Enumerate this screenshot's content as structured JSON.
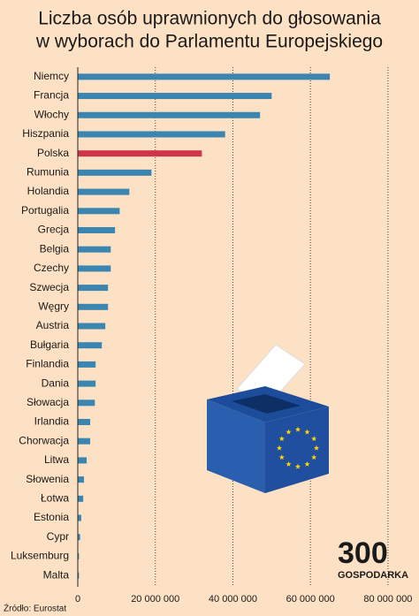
{
  "chart_data": {
    "type": "barh",
    "title": [
      "Liczba osób uprawnionych do głosowania",
      "w wyborach do Parlamentu Europejskiego"
    ],
    "categories": [
      "Niemcy",
      "Francja",
      "Włochy",
      "Hiszpania",
      "Polska",
      "Rumunia",
      "Holandia",
      "Portugalia",
      "Grecja",
      "Belgia",
      "Czechy",
      "Szwecja",
      "Węgry",
      "Austria",
      "Bułgaria",
      "Finlandia",
      "Dania",
      "Słowacja",
      "Irlandia",
      "Chorwacja",
      "Litwa",
      "Słowenia",
      "Łotwa",
      "Estonia",
      "Cypr",
      "Luksemburg",
      "Malta"
    ],
    "values": [
      65000000,
      50000000,
      47000000,
      38000000,
      32000000,
      19000000,
      13300000,
      10800000,
      9600000,
      8500000,
      8500000,
      7800000,
      7800000,
      7100000,
      6200000,
      4600000,
      4600000,
      4400000,
      3200000,
      3200000,
      2300000,
      1600000,
      1400000,
      900000,
      600000,
      300000,
      300000
    ],
    "colors": [
      "#3a86b0",
      "#3a86b0",
      "#3a86b0",
      "#3a86b0",
      "#d0344a",
      "#3a86b0",
      "#3a86b0",
      "#3a86b0",
      "#3a86b0",
      "#3a86b0",
      "#3a86b0",
      "#3a86b0",
      "#3a86b0",
      "#3a86b0",
      "#3a86b0",
      "#3a86b0",
      "#3a86b0",
      "#3a86b0",
      "#3a86b0",
      "#3a86b0",
      "#3a86b0",
      "#3a86b0",
      "#3a86b0",
      "#3a86b0",
      "#3a86b0",
      "#3a86b0",
      "#3a86b0"
    ],
    "xlim": [
      0,
      88000000
    ],
    "xticks": [
      0,
      {
        "value": 20000000,
        "label": "20 000 000"
      },
      {
        "value": 40000000,
        "label": "40 000 000"
      },
      {
        "value": 60000000,
        "label": "60 000 000"
      },
      {
        "value": 80000000,
        "label": "80 000 000"
      }
    ],
    "grid": true,
    "source": "Źródło: Eurostat"
  },
  "logo": {
    "number": "300",
    "name": "GOSPODARKA"
  }
}
